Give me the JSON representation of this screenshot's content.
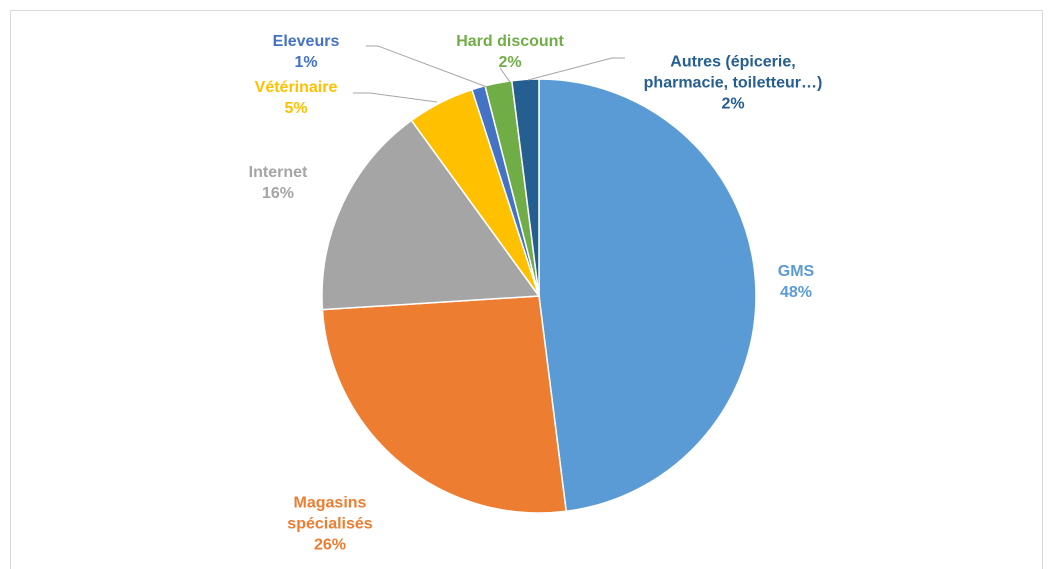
{
  "chart_data": {
    "type": "pie",
    "categories": [
      "GMS",
      "Magasins spécialisés",
      "Internet",
      "Vétérinaire",
      "Eleveurs",
      "Hard discount",
      "Autres (épicerie, pharmacie, toiletteur…)"
    ],
    "values": [
      48,
      26,
      16,
      5,
      1,
      2,
      2
    ],
    "value_labels": [
      "48%",
      "26%",
      "16%",
      "5%",
      "1%",
      "2%",
      "2%"
    ],
    "colors": [
      "#5b9bd5",
      "#ed7d31",
      "#a5a5a5",
      "#ffc000",
      "#4472c4",
      "#70ad47",
      "#255e91"
    ]
  }
}
